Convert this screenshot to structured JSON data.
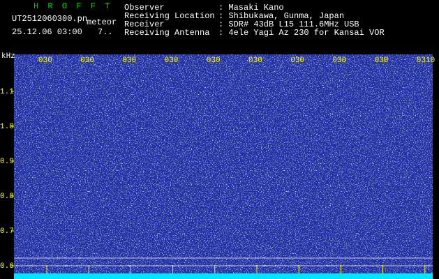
{
  "app": {
    "title": "H R O F F T",
    "file": "UT2512060300.pn",
    "label": "meteor",
    "datetime": "25.12.06 03:00",
    "count": "7.."
  },
  "info": [
    {
      "label": "Observer",
      "value": ": Masaki Kano"
    },
    {
      "label": "Receiving Location",
      "value": ": Shibukawa, Gunma, Japan"
    },
    {
      "label": "Receiver",
      "value": ": SDR# 43dB L15 111.6MHz USB"
    },
    {
      "label": "Receiving Antenna",
      "value": ": 4ele Yagi Az 230 for Kansai VOR"
    }
  ],
  "axis": {
    "unit": "kHz",
    "yticks": [
      "1.1",
      "1.0",
      "0.9",
      "0.8",
      "0.7",
      "0.6"
    ],
    "time_labels": [
      "030",
      "030",
      "030",
      "030",
      "030",
      "030",
      "030",
      "030",
      "030",
      "0310"
    ]
  }
}
